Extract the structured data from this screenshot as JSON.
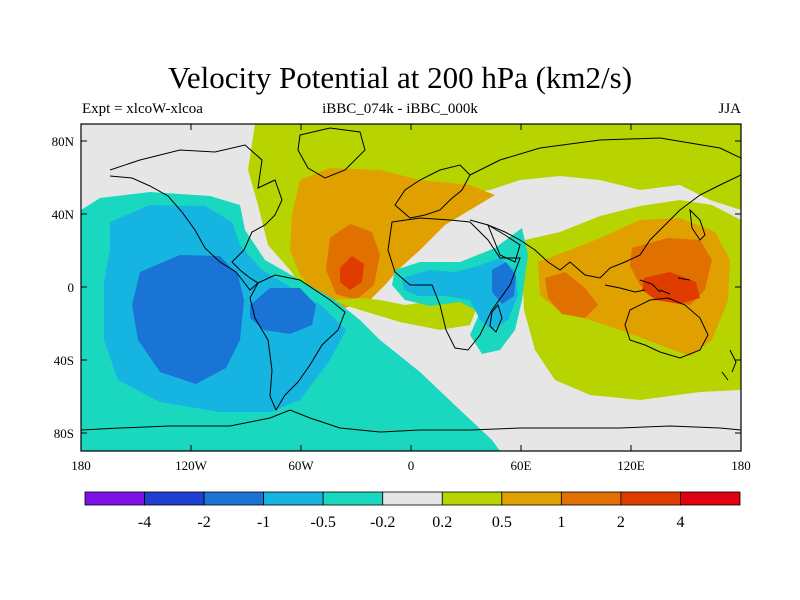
{
  "title": "Velocity Potential at 200 hPa (km2/s)",
  "subtitle_left": "Expt = xlcoW-xlcoa",
  "subtitle_center": "iBBC_074k - iBBC_000k",
  "subtitle_right": "JJA",
  "map": {
    "lon_ticks": [
      "180",
      "120W",
      "60W",
      "0",
      "60E",
      "120E",
      "180"
    ],
    "lat_ticks": [
      "80N",
      "40N",
      "0",
      "40S",
      "80S"
    ]
  },
  "colorbar": {
    "colors": [
      "#7c12e6",
      "#1e3fd0",
      "#1a74d6",
      "#16b4e0",
      "#1ad8c0",
      "#e6e6e6",
      "#b8d400",
      "#e0a000",
      "#e07000",
      "#e03c00",
      "#e00010"
    ],
    "labels": [
      "-4",
      "-2",
      "-1",
      "-0.5",
      "-0.2",
      "0.2",
      "0.5",
      "1",
      "2",
      "4"
    ]
  },
  "icons": {
    "projection": "cylindrical-equidistant-map"
  }
}
